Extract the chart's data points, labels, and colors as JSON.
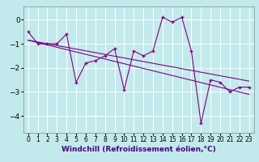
{
  "xlabel": "Windchill (Refroidissement éolien,°C)",
  "bg_color": "#c2eaec",
  "line_color": "#800080",
  "grid_color": "#ffffff",
  "xlim": [
    -0.5,
    23.5
  ],
  "ylim": [
    -4.7,
    0.55
  ],
  "yticks": [
    0,
    -1,
    -2,
    -3,
    -4
  ],
  "xticks": [
    0,
    1,
    2,
    3,
    4,
    5,
    6,
    7,
    8,
    9,
    10,
    11,
    12,
    13,
    14,
    15,
    16,
    17,
    18,
    19,
    20,
    21,
    22,
    23
  ],
  "series1_x": [
    0,
    1,
    2,
    3,
    4,
    5,
    6,
    7,
    8,
    9,
    10,
    11,
    12,
    13,
    14,
    15,
    16,
    17,
    18,
    19,
    20,
    21,
    22,
    23
  ],
  "series1_y": [
    -0.5,
    -1.0,
    -1.0,
    -1.0,
    -0.6,
    -2.6,
    -1.8,
    -1.7,
    -1.5,
    -1.2,
    -2.9,
    -1.3,
    -1.5,
    -1.3,
    0.1,
    -0.1,
    0.1,
    -1.3,
    -4.3,
    -2.5,
    -2.6,
    -3.0,
    -2.8,
    -2.8
  ],
  "trend1_x": [
    0,
    23
  ],
  "trend1_y": [
    -0.85,
    -2.55
  ],
  "trend2_x": [
    0,
    23
  ],
  "trend2_y": [
    -0.85,
    -3.1
  ],
  "xlabel_color": "#4b0082",
  "xlabel_fontsize": 6.5,
  "tick_fontsize": 5.5,
  "ytick_fontsize": 6.5,
  "linewidth": 0.8,
  "marker_size": 3.5
}
